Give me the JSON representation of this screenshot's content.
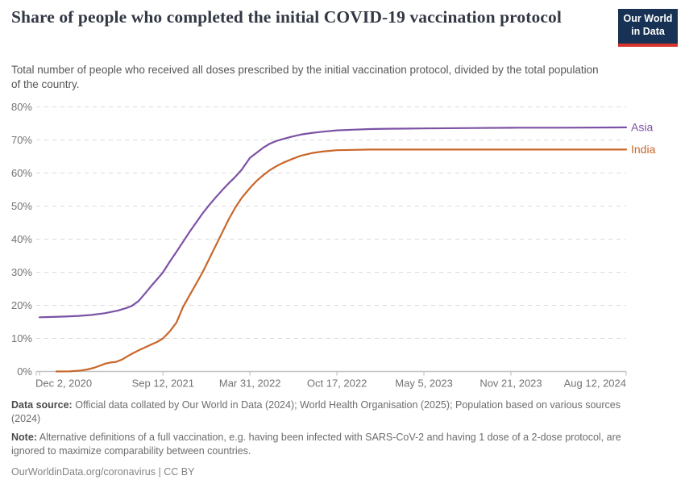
{
  "header": {
    "title": "Share of people who completed the initial COVID-19 vaccination protocol",
    "logo": {
      "line1": "Our World",
      "line2": "in Data"
    }
  },
  "subtitle": {
    "line1": "Total number of people who received all doses prescribed by the initial vaccination protocol, divided by the total population",
    "line2": "of the country."
  },
  "footer": {
    "datasource_label": "Data source:",
    "datasource_line1": "Official data collated by Our World in Data (2024); World Health Organisation (2025); Population based on various sources",
    "datasource_line2": "(2024)",
    "note_label": "Note:",
    "note_line1": "Alternative definitions of a full vaccination, e.g. having been infected with SARS-CoV-2 and having 1 dose of a 2-dose protocol, are",
    "note_line2": "ignored to maximize comparability between countries.",
    "cc_text": "OurWorldinData.org/coronavirus | CC BY"
  },
  "colors": {
    "asia": "#7C52A5",
    "india": "#C9662A",
    "gridline": "#dcdcdc",
    "axis": "#c3c3c3",
    "axis_text": "#737373",
    "logo_bg": "#173254",
    "logo_red": "#d7352c"
  },
  "chart_data": {
    "type": "line",
    "title": "Share of people who completed the initial COVID-19 vaccination protocol",
    "x_unit": "days since Dec 2, 2020",
    "xlim_days": [
      0,
      1349
    ],
    "ylim": [
      0,
      80
    ],
    "grid": true,
    "y_ticks": [
      {
        "value": 0,
        "label": "0%"
      },
      {
        "value": 10,
        "label": "10%"
      },
      {
        "value": 20,
        "label": "20%"
      },
      {
        "value": 30,
        "label": "30%"
      },
      {
        "value": 40,
        "label": "40%"
      },
      {
        "value": 50,
        "label": "50%"
      },
      {
        "value": 60,
        "label": "60%"
      },
      {
        "value": 70,
        "label": "70%"
      },
      {
        "value": 80,
        "label": "80%"
      }
    ],
    "x_ticks": [
      {
        "day": 0,
        "label": "Dec 2, 2020"
      },
      {
        "day": 284,
        "label": "Sep 12, 2021"
      },
      {
        "day": 484,
        "label": "Mar 31, 2022"
      },
      {
        "day": 684,
        "label": "Oct 17, 2022"
      },
      {
        "day": 884,
        "label": "May 5, 2023"
      },
      {
        "day": 1084,
        "label": "Nov 21, 2023"
      },
      {
        "day": 1349,
        "label": "Aug 12, 2024"
      }
    ],
    "legend_position": "end-of-line",
    "series": [
      {
        "name": "Asia",
        "color": "#7C52A5",
        "points": [
          [
            0,
            16.4
          ],
          [
            30,
            16.5
          ],
          [
            60,
            16.6
          ],
          [
            90,
            16.8
          ],
          [
            120,
            17.1
          ],
          [
            150,
            17.6
          ],
          [
            180,
            18.4
          ],
          [
            200,
            19.2
          ],
          [
            212,
            19.8
          ],
          [
            228,
            21.3
          ],
          [
            243,
            23.6
          ],
          [
            258,
            26.0
          ],
          [
            270,
            27.8
          ],
          [
            284,
            30.0
          ],
          [
            300,
            33.3
          ],
          [
            315,
            36.2
          ],
          [
            330,
            39.2
          ],
          [
            345,
            42.2
          ],
          [
            360,
            45.0
          ],
          [
            375,
            47.8
          ],
          [
            390,
            50.3
          ],
          [
            405,
            52.6
          ],
          [
            420,
            54.8
          ],
          [
            435,
            56.9
          ],
          [
            450,
            58.8
          ],
          [
            465,
            61.0
          ],
          [
            484,
            64.6
          ],
          [
            500,
            66.2
          ],
          [
            515,
            67.7
          ],
          [
            530,
            68.9
          ],
          [
            545,
            69.7
          ],
          [
            560,
            70.3
          ],
          [
            580,
            71.0
          ],
          [
            600,
            71.6
          ],
          [
            625,
            72.1
          ],
          [
            650,
            72.5
          ],
          [
            684,
            72.9
          ],
          [
            720,
            73.1
          ],
          [
            760,
            73.3
          ],
          [
            800,
            73.4
          ],
          [
            884,
            73.5
          ],
          [
            1000,
            73.6
          ],
          [
            1100,
            73.7
          ],
          [
            1200,
            73.7
          ],
          [
            1349,
            73.8
          ]
        ]
      },
      {
        "name": "India",
        "color": "#C9662A",
        "points": [
          [
            39,
            0.0
          ],
          [
            70,
            0.05
          ],
          [
            95,
            0.3
          ],
          [
            110,
            0.6
          ],
          [
            125,
            1.1
          ],
          [
            140,
            1.8
          ],
          [
            152,
            2.4
          ],
          [
            163,
            2.7
          ],
          [
            176,
            2.9
          ],
          [
            190,
            3.6
          ],
          [
            205,
            4.8
          ],
          [
            215,
            5.5
          ],
          [
            228,
            6.4
          ],
          [
            243,
            7.3
          ],
          [
            258,
            8.2
          ],
          [
            270,
            8.9
          ],
          [
            284,
            10.0
          ],
          [
            300,
            12.2
          ],
          [
            315,
            14.8
          ],
          [
            330,
            19.5
          ],
          [
            345,
            23.0
          ],
          [
            360,
            26.5
          ],
          [
            375,
            30.0
          ],
          [
            390,
            34.0
          ],
          [
            405,
            38.0
          ],
          [
            420,
            42.0
          ],
          [
            435,
            46.0
          ],
          [
            450,
            49.5
          ],
          [
            465,
            52.5
          ],
          [
            484,
            55.5
          ],
          [
            500,
            57.7
          ],
          [
            515,
            59.4
          ],
          [
            530,
            60.9
          ],
          [
            545,
            62.1
          ],
          [
            560,
            63.1
          ],
          [
            580,
            64.2
          ],
          [
            600,
            65.2
          ],
          [
            625,
            66.0
          ],
          [
            650,
            66.5
          ],
          [
            684,
            66.9
          ],
          [
            720,
            67.0
          ],
          [
            760,
            67.1
          ],
          [
            884,
            67.1
          ],
          [
            1000,
            67.1
          ],
          [
            1200,
            67.1
          ],
          [
            1349,
            67.1
          ]
        ]
      }
    ]
  }
}
